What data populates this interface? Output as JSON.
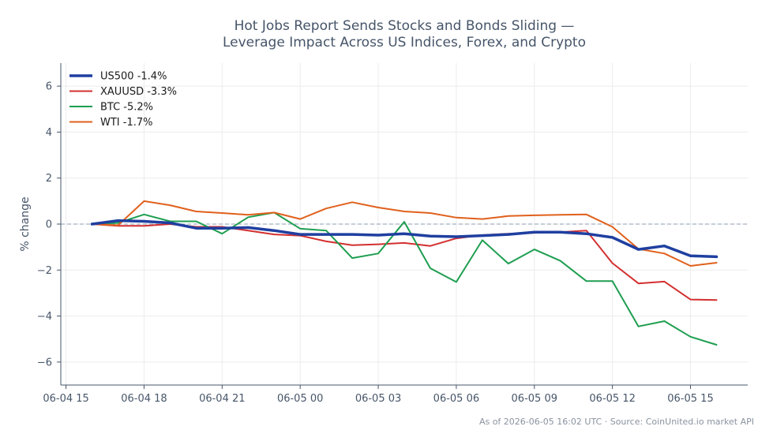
{
  "chart_data": {
    "type": "line",
    "title_line1": "Hot Jobs Report Sends Stocks and Bonds Sliding —",
    "title_line2": "Leverage Impact Across US Indices, Forex, and Crypto",
    "xlabel": "",
    "ylabel": "% change",
    "footer": "As of 2026-06-05 16:02 UTC · Source: CoinUnited.io market API",
    "x_ticks": [
      "06-04 15",
      "06-04 18",
      "06-04 21",
      "06-05 00",
      "06-05 03",
      "06-05 06",
      "06-05 09",
      "06-05 12",
      "06-05 15"
    ],
    "x_tick_hours": [
      0,
      3,
      6,
      9,
      12,
      15,
      18,
      21,
      24
    ],
    "xlim": [
      -0.2,
      26.2
    ],
    "y_ticks": [
      -6,
      -4,
      -2,
      0,
      2,
      4,
      6
    ],
    "ylim": [
      -7,
      7
    ],
    "grid": true,
    "zero_line": true,
    "legend_position": "top-left",
    "x": [
      1,
      2,
      3,
      4,
      5,
      6,
      7,
      8,
      9,
      10,
      11,
      12,
      13,
      14,
      15,
      16,
      17,
      18,
      19,
      20,
      21,
      22,
      23,
      24,
      25
    ],
    "series": [
      {
        "name": "US500 -1.4%",
        "color": "#1f3fa0",
        "values": [
          0.0,
          0.15,
          0.12,
          0.05,
          -0.18,
          -0.18,
          -0.15,
          -0.28,
          -0.45,
          -0.45,
          -0.45,
          -0.48,
          -0.42,
          -0.52,
          -0.55,
          -0.5,
          -0.45,
          -0.35,
          -0.35,
          -0.42,
          -0.58,
          -1.1,
          -0.95,
          -1.38,
          -1.42
        ]
      },
      {
        "name": "XAUUSD -3.3%",
        "color": "#d32f2f",
        "values": [
          0.0,
          -0.08,
          -0.08,
          0.0,
          -0.12,
          -0.12,
          -0.28,
          -0.45,
          -0.5,
          -0.75,
          -0.92,
          -0.88,
          -0.82,
          -0.95,
          -0.62,
          -0.48,
          -0.42,
          -0.38,
          -0.35,
          -0.28,
          -1.7,
          -2.58,
          -2.5,
          -3.28,
          -3.3
        ]
      },
      {
        "name": "BTC -5.2%",
        "color": "#1e9e50",
        "values": [
          0.0,
          0.05,
          0.42,
          0.12,
          0.12,
          -0.42,
          0.3,
          0.5,
          -0.2,
          -0.28,
          -1.48,
          -1.28,
          0.1,
          -1.92,
          -2.52,
          -0.7,
          -1.72,
          -1.1,
          -1.6,
          -2.48,
          -2.48,
          -4.45,
          -4.22,
          -4.9,
          -5.25
        ]
      },
      {
        "name": "WTI -1.7%",
        "color": "#e0601c",
        "values": [
          0.0,
          -0.05,
          1.0,
          0.82,
          0.55,
          0.48,
          0.4,
          0.5,
          0.22,
          0.68,
          0.95,
          0.72,
          0.55,
          0.48,
          0.28,
          0.22,
          0.35,
          0.38,
          0.4,
          0.42,
          -0.12,
          -1.08,
          -1.28,
          -1.82,
          -1.68
        ]
      }
    ]
  }
}
